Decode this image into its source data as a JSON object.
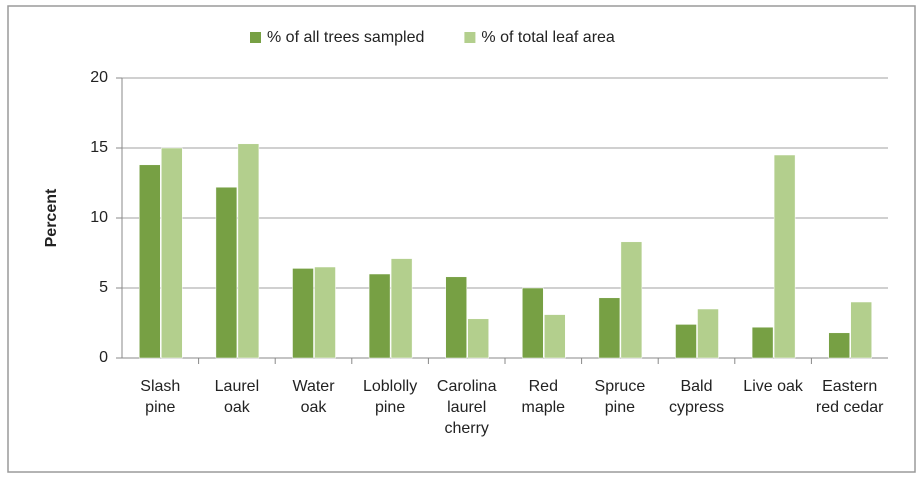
{
  "chart_data": {
    "type": "bar",
    "ylabel": "Percent",
    "categories": [
      "Slash pine",
      "Laurel oak",
      "Water oak",
      "Loblolly pine",
      "Carolina laurel cherry",
      "Red maple",
      "Spruce pine",
      "Bald cypress",
      "Live oak",
      "Eastern red cedar"
    ],
    "series": [
      {
        "name": "% of all trees sampled",
        "color": "#77a044",
        "values": [
          13.8,
          12.2,
          6.4,
          6.0,
          5.8,
          5.0,
          4.3,
          2.4,
          2.2,
          1.8
        ]
      },
      {
        "name": "% of total leaf area",
        "color": "#b3cf8d",
        "values": [
          15.0,
          15.3,
          6.5,
          7.1,
          2.8,
          3.1,
          8.3,
          3.5,
          14.5,
          4.0
        ]
      }
    ],
    "ylim": [
      0,
      20
    ],
    "yticks": [
      0,
      5,
      10,
      15,
      20
    ],
    "grid": true,
    "legend": "top"
  }
}
